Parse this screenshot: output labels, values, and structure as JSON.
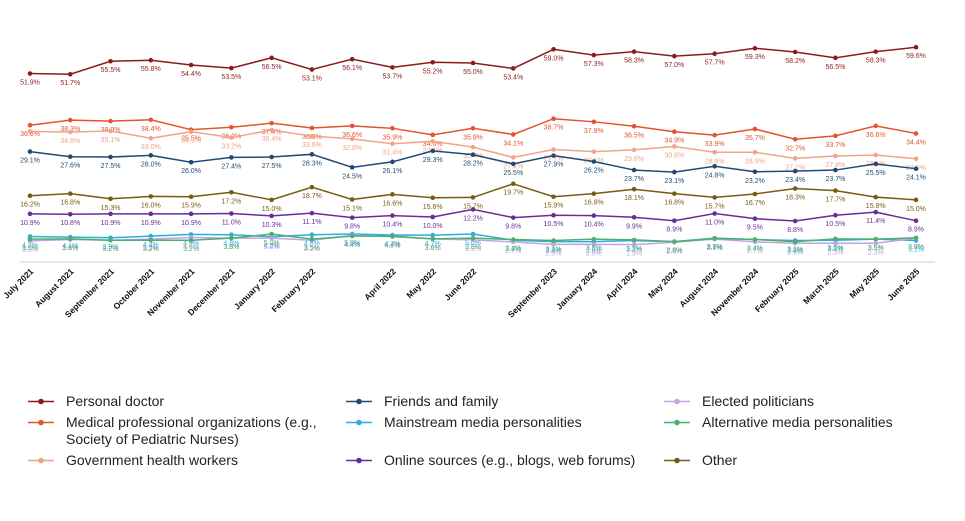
{
  "chart_data": {
    "type": "line",
    "categories": [
      "July 2021",
      "August 2021",
      "September 2021",
      "October 2021",
      "November 2021",
      "December 2021",
      "January 2022",
      "February 2022",
      null,
      "April 2022",
      "May 2022",
      "June 2022",
      null,
      "September 2023",
      "January 2024",
      "April 2024",
      "May 2024",
      "August 2024",
      "November 2024",
      "February 2025",
      "March 2025",
      "May 2025",
      "June 2025"
    ],
    "ylim": [
      -2,
      62
    ],
    "series": [
      {
        "name": "Personal doctor",
        "color": "#8b1c1c",
        "values": [
          51.9,
          51.7,
          55.5,
          55.8,
          54.4,
          53.5,
          56.5,
          53.1,
          56.1,
          53.7,
          55.2,
          55.0,
          53.4,
          59.0,
          57.3,
          58.3,
          57.0,
          57.7,
          59.3,
          58.2,
          56.5,
          58.3,
          59.6
        ],
        "value_labels": [
          "51.9%",
          "51.7%",
          "55.5%",
          "55.8%",
          "54.4%",
          "53.5%",
          "56.5%",
          "53.1%",
          "56.1%",
          "53.7%",
          "55.2%",
          "55.0%",
          "53.4%",
          "59.0%",
          "57.3%",
          "58.3%",
          "57.0%",
          "57.7%",
          "59.3%",
          "58.2%",
          "56.5%",
          "58.3%",
          "59.6%"
        ]
      },
      {
        "name": "Medical professional organizations (e.g., Society of Pediatric Nurses)",
        "color": "#e2542c",
        "values": [
          36.8,
          38.3,
          38.0,
          38.4,
          35.5,
          36.2,
          37.4,
          36.0,
          36.6,
          35.9,
          34.0,
          35.9,
          34.1,
          38.7,
          37.8,
          36.5,
          34.9,
          33.9,
          35.7,
          32.7,
          33.7,
          36.6,
          34.4
        ],
        "value_labels": [
          "36.8%",
          "38.3%",
          "38.0%",
          "38.4%",
          "35.5%",
          "36.2%",
          "37.4%",
          "36.0%",
          "36.6%",
          "35.9%",
          "34.0%",
          "35.9%",
          "34.1%",
          "38.7%",
          "37.8%",
          "36.5%",
          "34.9%",
          "33.9%",
          "35.7%",
          "32.7%",
          "33.7%",
          "36.6%",
          "34.4%"
        ]
      },
      {
        "name": "Government health workers",
        "color": "#f0a488",
        "values": [
          35.0,
          34.8,
          35.1,
          33.0,
          34.9,
          33.2,
          35.4,
          33.6,
          32.8,
          31.4,
          32.1,
          30.4,
          27.4,
          29.7,
          29.1,
          29.6,
          30.6,
          28.9,
          28.9,
          27.1,
          27.8,
          28.1,
          27.0
        ],
        "value_labels": [
          null,
          "34.8%",
          "35.1%",
          "33.0%",
          "34.9%",
          "33.2%",
          "35.4%",
          "33.6%",
          "32.8%",
          "31.4%",
          "32.1%",
          "30.4%",
          "27.4%",
          "29.7%",
          "29.1%",
          "29.6%",
          "30.6%",
          "28.9%",
          "28.9%",
          "27.1%",
          "27.8%",
          "28.1%",
          "27.0%"
        ]
      },
      {
        "name": "Friends and family",
        "color": "#1f4a74",
        "values": [
          29.1,
          27.6,
          27.5,
          28.0,
          26.0,
          27.4,
          27.5,
          28.3,
          24.5,
          26.1,
          29.3,
          28.2,
          25.5,
          27.9,
          26.2,
          23.7,
          23.1,
          24.8,
          23.2,
          23.4,
          23.7,
          25.5,
          24.1
        ],
        "value_labels": [
          "29.1%",
          "27.6%",
          "27.5%",
          "28.0%",
          "26.0%",
          "27.4%",
          "27.5%",
          "28.3%",
          "24.5%",
          "26.1%",
          "29.3%",
          "28.2%",
          "25.5%",
          "27.9%",
          "26.2%",
          "23.7%",
          "23.1%",
          "24.8%",
          "23.2%",
          "23.4%",
          "23.7%",
          "25.5%",
          "24.1%"
        ]
      },
      {
        "name": "Mainstream media personalities",
        "color": "#2aaee0",
        "values": [
          4.3,
          4.1,
          3.9,
          4.4,
          4.9,
          4.8,
          4.2,
          4.8,
          5.0,
          4.7,
          4.7,
          5.0,
          3.2,
          2.8,
          2.8,
          3.1,
          2.8,
          3.8,
          3.4,
          3.1,
          3.2,
          3.5,
          3.1
        ],
        "value_labels": [
          "4.3%",
          "4.1%",
          "3.9%",
          "4.4%",
          "4.9%",
          "4.8%",
          "4.2%",
          "4.8%",
          "5.0%",
          "4.7%",
          "4.7%",
          "5.0%",
          "3.2%",
          "2.8%",
          "2.8%",
          "3.1%",
          "2.8%",
          "3.8%",
          "3.4%",
          "3.1%",
          "3.2%",
          "3.5%",
          "3.1%"
        ]
      },
      {
        "name": "Online sources (e.g., blogs, web forums)",
        "color": "#6a2b98",
        "values": [
          10.9,
          10.8,
          10.9,
          10.9,
          10.9,
          11.0,
          10.3,
          11.1,
          9.8,
          10.4,
          10.0,
          12.2,
          9.8,
          10.5,
          10.4,
          9.9,
          8.9,
          11.0,
          9.5,
          8.8,
          10.5,
          11.4,
          8.9
        ],
        "value_labels": [
          "10.9%",
          "10.8%",
          "10.9%",
          "10.9%",
          "10.9%",
          "11.0%",
          "10.3%",
          "11.1%",
          "9.8%",
          "10.4%",
          "10.0%",
          "12.2%",
          "9.8%",
          "10.5%",
          "10.4%",
          "9.9%",
          "8.9%",
          "11.0%",
          "9.5%",
          "8.8%",
          "10.5%",
          "11.4%",
          "8.9%"
        ]
      },
      {
        "name": "Elected politicians",
        "color": "#c3a3e3",
        "values": [
          3.0,
          3.4,
          3.2,
          3.5,
          4.0,
          3.8,
          3.8,
          3.2,
          4.6,
          4.2,
          3.6,
          3.3,
          2.7,
          2.0,
          2.0,
          1.9,
          2.6,
          3.5,
          2.7,
          2.3,
          2.3,
          2.3,
          3.8
        ],
        "value_labels": [
          "3.0%",
          "3.4%",
          "3.2%",
          "3.5%",
          "4.0%",
          "3.8%",
          "3.8%",
          "3.2%",
          "4.6%",
          "4.2%",
          "3.6%",
          "3.3%",
          "2.7%",
          "2.0%",
          "2.0%",
          "1.9%",
          "2.6%",
          "3.5%",
          "2.7%",
          "2.3%",
          "2.3%",
          "2.3%",
          "3.8%"
        ]
      },
      {
        "name": "Alternative media personalities",
        "color": "#4fae6c",
        "values": [
          3.5,
          3.6,
          3.2,
          3.2,
          3.2,
          3.8,
          5.0,
          3.5,
          4.4,
          4.4,
          3.6,
          3.8,
          3.4,
          3.1,
          3.5,
          3.3,
          2.8,
          3.7,
          3.4,
          2.8,
          3.6,
          3.5,
          3.9
        ],
        "value_labels": [
          "3.5%",
          "3.6%",
          "3.2%",
          "3.2%",
          "3.2%",
          "3.8%",
          "5.0%",
          "3.5%",
          "4.4%",
          "4.4%",
          "3.6%",
          "3.8%",
          "3.4%",
          "3.1%",
          "3.5%",
          "3.3%",
          "2.8%",
          "3.7%",
          "3.4%",
          "2.8%",
          "3.6%",
          "3.5%",
          "3.9%"
        ]
      },
      {
        "name": "Other",
        "color": "#7a5a12",
        "values": [
          16.2,
          16.8,
          15.3,
          16.0,
          15.9,
          17.2,
          15.0,
          18.7,
          15.1,
          16.6,
          15.6,
          15.7,
          19.7,
          15.9,
          16.8,
          18.1,
          16.8,
          15.7,
          16.7,
          18.3,
          17.7,
          15.8,
          15.0
        ],
        "value_labels": [
          "16.2%",
          "16.8%",
          "15.3%",
          "16.0%",
          "15.9%",
          "17.2%",
          "15.0%",
          "18.7%",
          "15.1%",
          "16.6%",
          "15.6%",
          "15.7%",
          "19.7%",
          "15.9%",
          "16.8%",
          "18.1%",
          "16.8%",
          "15.7%",
          "16.7%",
          "18.3%",
          "17.7%",
          "15.8%",
          "15.0%"
        ]
      }
    ]
  }
}
